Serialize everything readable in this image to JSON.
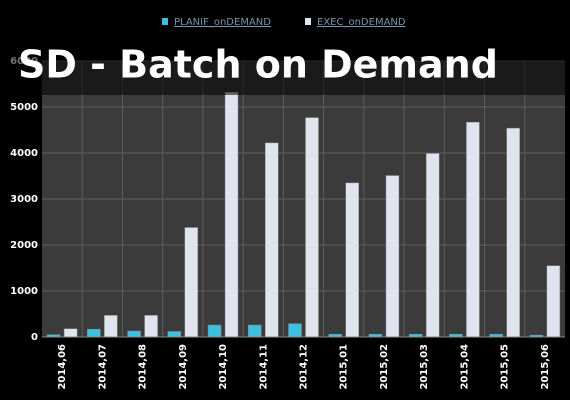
{
  "chart_data": {
    "type": "bar",
    "title": "SD - Batch on Demand",
    "categories": [
      "2014,06",
      "2014,07",
      "2014,08",
      "2014,09",
      "2014,10",
      "2014,11",
      "2014,12",
      "2015,01",
      "2015,02",
      "2015,03",
      "2015,04",
      "2015,05",
      "2015,06"
    ],
    "series": [
      {
        "name": "PLANIF_onDEMAND",
        "color": "#3fbfe0",
        "values": [
          50,
          170,
          130,
          120,
          260,
          260,
          290,
          60,
          60,
          60,
          60,
          60,
          40
        ]
      },
      {
        "name": "EXEC_onDEMAND",
        "color": "#dfe4ee",
        "values": [
          180,
          470,
          470,
          2380,
          5320,
          4220,
          4770,
          3350,
          3510,
          3990,
          4670,
          4540,
          1550
        ]
      }
    ],
    "ylim": [
      0,
      6000
    ],
    "yticks": [
      0,
      1000,
      2000,
      3000,
      4000,
      5000,
      6000
    ],
    "grid": true,
    "legend": "top"
  }
}
